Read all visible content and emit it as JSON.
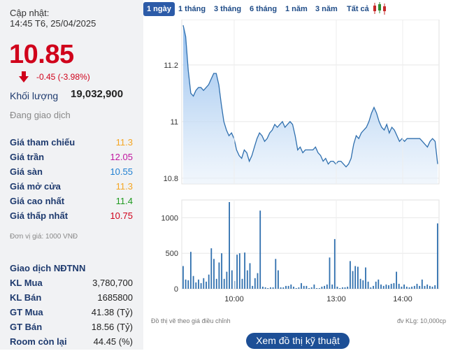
{
  "info": {
    "updated_label": "Cập nhật:",
    "updated_time": "14:45 T6, 25/04/2025",
    "price": "10.85",
    "change": "-0.45 (-3.98%)",
    "volume_label": "Khối lượng",
    "volume_value": "19,032,900",
    "status": "Đang giao dịch",
    "rows": [
      {
        "label": "Giá tham chiếu",
        "value": "11.3",
        "color": "#f5a623"
      },
      {
        "label": "Giá trần",
        "value": "12.05",
        "color": "#c0169f"
      },
      {
        "label": "Giá sàn",
        "value": "10.55",
        "color": "#1e7fd1"
      },
      {
        "label": "Giá mở cửa",
        "value": "11.3",
        "color": "#f5a623"
      },
      {
        "label": "Giá cao nhất",
        "value": "11.4",
        "color": "#1e9a1e"
      },
      {
        "label": "Giá thấp nhất",
        "value": "10.75",
        "color": "#d0021b"
      }
    ],
    "unit_note": "Đơn vị giá: 1000 VNĐ"
  },
  "foreign": {
    "title": "Giao dịch NĐTNN",
    "rows": [
      {
        "label": "KL Mua",
        "value": "3,780,700"
      },
      {
        "label": "KL Bán",
        "value": "1685800"
      },
      {
        "label": "GT Mua",
        "value": "41.38 (Tỷ)"
      },
      {
        "label": "GT Bán",
        "value": "18.56 (Tỷ)"
      },
      {
        "label": "Room còn lại",
        "value": "44.45 (%)"
      }
    ]
  },
  "tabs": [
    {
      "label": "1 ngày",
      "active": true
    },
    {
      "label": "1 tháng",
      "active": false
    },
    {
      "label": "3 tháng",
      "active": false
    },
    {
      "label": "6 tháng",
      "active": false
    },
    {
      "label": "1 năm",
      "active": false
    },
    {
      "label": "3 năm",
      "active": false
    },
    {
      "label": "Tất cả",
      "active": false
    }
  ],
  "candle_icon": "candlestick-icon",
  "notes": {
    "left": "Đồ thị vẽ theo giá điều chỉnh",
    "right": "đv KLg: 10,000cp"
  },
  "button_label": "Xem đồ thị kỹ thuật",
  "chart_data": {
    "type": "area",
    "title": "",
    "x_ticks": [
      "10:00",
      "13:00",
      "14:00"
    ],
    "price": {
      "y_ticks": [
        11.2,
        11,
        10.8
      ],
      "ylim": [
        10.78,
        11.36
      ],
      "values": [
        11.34,
        11.3,
        11.18,
        11.1,
        11.09,
        11.11,
        11.12,
        11.12,
        11.11,
        11.12,
        11.13,
        11.15,
        11.17,
        11.17,
        11.13,
        11.06,
        11.0,
        10.97,
        10.95,
        10.96,
        10.94,
        10.9,
        10.88,
        10.87,
        10.9,
        10.89,
        10.86,
        10.88,
        10.91,
        10.94,
        10.96,
        10.95,
        10.93,
        10.94,
        10.96,
        10.97,
        10.99,
        10.98,
        10.99,
        11.0,
        10.98,
        10.99,
        11.0,
        10.99,
        10.95,
        10.9,
        10.91,
        10.89,
        10.9,
        10.9,
        10.9,
        10.9,
        10.91,
        10.89,
        10.88,
        10.86,
        10.87,
        10.85,
        10.86,
        10.86,
        10.85,
        10.86,
        10.86,
        10.85,
        10.84,
        10.85,
        10.87,
        10.92,
        10.95,
        10.94,
        10.96,
        10.97,
        10.98,
        11.0,
        11.03,
        11.05,
        11.03,
        11.0,
        10.98,
        10.97,
        10.99,
        10.96,
        10.98,
        10.97,
        10.95,
        10.93,
        10.94,
        10.93,
        10.94,
        10.94,
        10.94,
        10.94,
        10.94,
        10.94,
        10.93,
        10.92,
        10.91,
        10.93,
        10.94,
        10.93,
        10.85
      ]
    },
    "volume": {
      "unit": "10,000cp",
      "y_ticks": [
        1000,
        500,
        0
      ],
      "ylim": [
        0,
        1250
      ],
      "values": [
        320,
        130,
        120,
        520,
        180,
        90,
        130,
        80,
        150,
        100,
        200,
        570,
        420,
        140,
        370,
        500,
        140,
        240,
        1220,
        260,
        110,
        480,
        500,
        140,
        510,
        260,
        360,
        40,
        150,
        220,
        1100,
        30,
        20,
        10,
        20,
        20,
        420,
        260,
        20,
        20,
        40,
        40,
        60,
        30,
        10,
        20,
        80,
        40,
        40,
        10,
        20,
        60,
        10,
        10,
        30,
        40,
        60,
        440,
        60,
        700,
        30,
        10,
        20,
        20,
        30,
        390,
        250,
        320,
        310,
        140,
        120,
        300,
        100,
        20,
        40,
        100,
        130,
        60,
        40,
        60,
        50,
        70,
        80,
        240,
        70,
        30,
        60,
        30,
        20,
        30,
        40,
        70,
        40,
        130,
        40,
        60,
        40,
        30,
        50,
        920
      ]
    }
  }
}
